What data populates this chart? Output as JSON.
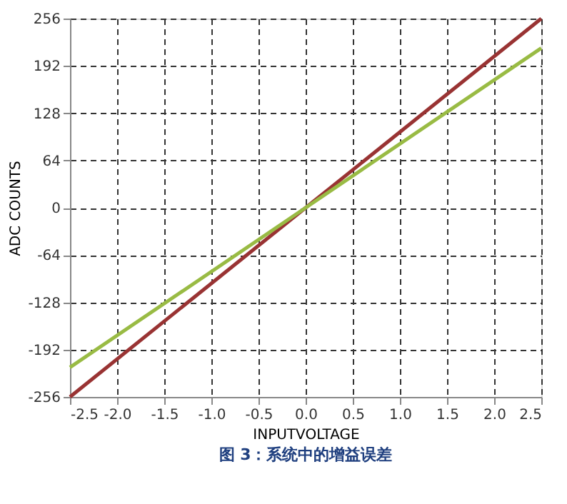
{
  "chart_data": {
    "type": "line",
    "xlabel": "INPUTVOLTAGE",
    "ylabel": "ADC COUNTS",
    "annotations": [
      "图 3：系统中的增益误差"
    ],
    "series": [
      {
        "color": "#993333",
        "x": [
          -2.5,
          0,
          2.5
        ],
        "values": [
          -256,
          0,
          256
        ]
      },
      {
        "color": "#99bb44",
        "x": [
          -2.5,
          0,
          2.5
        ],
        "values": [
          -216,
          0,
          216
        ]
      }
    ],
    "xlim": [
      -2.5,
      2.5
    ],
    "xticks": [
      -2.5,
      {
        "value": -2,
        "label": "-2.0"
      },
      -1.5,
      {
        "value": -1,
        "label": "-1.0"
      },
      -0.5,
      {
        "value": 0,
        "label": "0.0"
      },
      0.5,
      {
        "value": 1,
        "label": "1.0"
      },
      1.5,
      {
        "value": 2,
        "label": "2.0"
      },
      2.5
    ],
    "ylim": [
      -256,
      256
    ],
    "yticks": [
      -256,
      -192,
      -128,
      -64,
      0,
      64,
      128,
      192,
      256
    ],
    "grid": true,
    "legend": false,
    "marker": "none",
    "line_style": "solid"
  }
}
